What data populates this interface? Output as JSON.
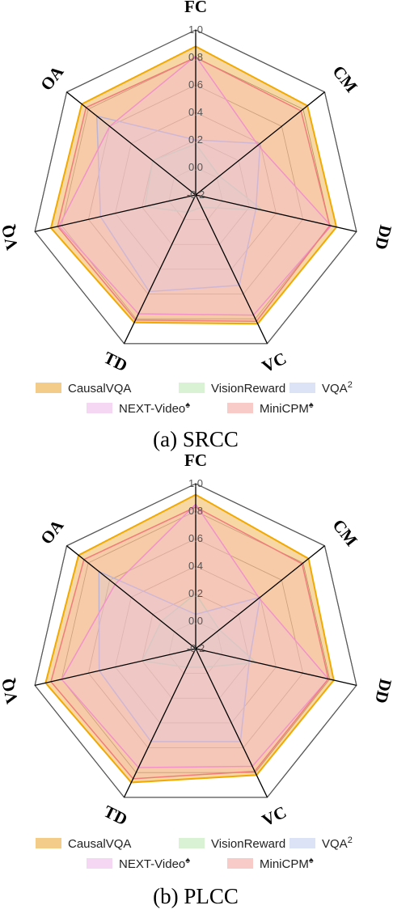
{
  "chart_data": [
    {
      "type": "radar",
      "caption": "(a) SRCC",
      "axes": [
        "FC",
        "CM",
        "DD",
        "VC",
        "TD",
        "VQ",
        "OA"
      ],
      "ticks": [
        "-0.2",
        "0.0",
        "0.2",
        "0.4",
        "0.6",
        "0.8",
        "1.0"
      ],
      "rlim": [
        -0.2,
        1.0
      ],
      "series": [
        {
          "name": "CausalVQA",
          "values": [
            0.88,
            0.84,
            0.85,
            0.84,
            0.83,
            0.88,
            0.86
          ]
        },
        {
          "name": "VisionReward",
          "values": [
            0.17,
            0.02,
            0.3,
            -0.1,
            -0.06,
            0.18,
            0.2
          ]
        },
        {
          "name": "VQA2",
          "values": [
            0.2,
            0.4,
            0.25,
            0.53,
            0.58,
            0.51,
            0.72
          ]
        },
        {
          "name": "NEXT-Video",
          "values": [
            0.81,
            0.38,
            0.81,
            0.77,
            0.76,
            0.82,
            0.6
          ]
        },
        {
          "name": "MiniCPM",
          "values": [
            0.8,
            0.78,
            0.8,
            0.82,
            0.81,
            0.83,
            0.82
          ]
        }
      ]
    },
    {
      "type": "radar",
      "caption": "(b) PLCC",
      "axes": [
        "FC",
        "CM",
        "DD",
        "VC",
        "TD",
        "VQ",
        "OA"
      ],
      "ticks": [
        "-0.2",
        "0.0",
        "0.2",
        "0.4",
        "0.6",
        "0.8",
        "1.0"
      ],
      "rlim": [
        -0.2,
        1.0
      ],
      "series": [
        {
          "name": "CausalVQA",
          "values": [
            0.92,
            0.85,
            0.83,
            0.82,
            0.88,
            0.92,
            0.89
          ]
        },
        {
          "name": "VisionReward",
          "values": [
            0.2,
            0.02,
            0.25,
            -0.05,
            -0.05,
            0.2,
            0.12
          ]
        },
        {
          "name": "VQA2",
          "values": [
            0.05,
            0.4,
            0.2,
            0.55,
            0.55,
            0.52,
            0.7
          ]
        },
        {
          "name": "NEXT-Video",
          "values": [
            0.85,
            0.39,
            0.79,
            0.75,
            0.76,
            0.8,
            0.55
          ]
        },
        {
          "name": "MiniCPM",
          "values": [
            0.83,
            0.79,
            0.79,
            0.79,
            0.85,
            0.88,
            0.84
          ]
        }
      ]
    }
  ],
  "legend": {
    "items": [
      {
        "label": "CausalVQA",
        "sup": ""
      },
      {
        "label": "VisionReward",
        "sup": ""
      },
      {
        "label": "VQA",
        "sup": "2"
      },
      {
        "label": "NEXT-Video",
        "sup": "♠"
      },
      {
        "label": "MiniCPM",
        "sup": "♠"
      }
    ]
  },
  "colors": {
    "CausalVQA": {
      "line": "#f2a900",
      "fill": "#f0b657"
    },
    "VisionReward": {
      "line": "#a8d8a0",
      "fill": "#c9ecc1"
    },
    "VQA2": {
      "line": "#9fb2e6",
      "fill": "#cdd7f3"
    },
    "NEXT-Video": {
      "line": "#ee82d8",
      "fill": "#f1c6ee"
    },
    "MiniCPM": {
      "line": "#f07c7c",
      "fill": "#f5b5b0"
    },
    "grid": "#000000"
  }
}
